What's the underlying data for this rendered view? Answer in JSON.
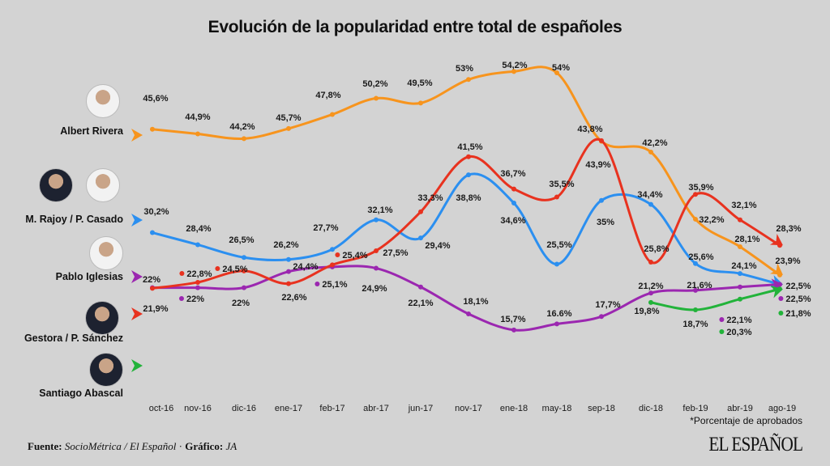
{
  "chart_data": {
    "type": "line",
    "title": "Evolución de la popularidad entre total de españoles",
    "categories": [
      "oct-16",
      "nov-16",
      "dic-16",
      "ene-17",
      "feb-17",
      "abr-17",
      "jun-17",
      "nov-17",
      "ene-18",
      "may-18",
      "sep-18",
      "dic-18",
      "feb-19",
      "abr-19",
      "ago-19"
    ],
    "ylim": [
      12,
      56
    ],
    "grid": false,
    "note": "*Porcentaje de aprobados",
    "series": [
      {
        "name": "Albert Rivera",
        "color": "#f7941d",
        "values": [
          45.6,
          44.9,
          44.2,
          45.7,
          47.8,
          50.2,
          49.5,
          53,
          54.2,
          54,
          43.8,
          42.2,
          32.2,
          28.1,
          23.9
        ],
        "labels": [
          "45,6%",
          "44,9%",
          "44,2%",
          "45,7%",
          "47,8%",
          "50,2%",
          "49,5%",
          "53%",
          "54,2%",
          "54%",
          "43,8%",
          "42,2%",
          "32,2%",
          "28,1%",
          "23,9%"
        ]
      },
      {
        "name": "M. Rajoy / P. Casado",
        "color": "#2b8ff0",
        "values": [
          30.2,
          28.4,
          26.5,
          26.2,
          27.7,
          32.1,
          29.4,
          38.8,
          34.6,
          25.5,
          35,
          34.4,
          25.6,
          24.1,
          22.5
        ],
        "labels": [
          "30,2%",
          "28,4%",
          "26,5%",
          "26,2%",
          "27,7%",
          "32,1%",
          "29,4%",
          "38,8%",
          "34,6%",
          "25,5%",
          "35%",
          "34,4%",
          "25,6%",
          "24,1%",
          "22,5%"
        ]
      },
      {
        "name": "Pablo Iglesias",
        "color": "#9b27b0",
        "values": [
          22,
          22,
          22,
          24.4,
          25.1,
          24.9,
          22.1,
          18.1,
          15.7,
          16.6,
          17.7,
          21.2,
          21.6,
          22.1,
          22.5
        ],
        "labels": [
          "22%",
          "22%",
          "22%",
          "24,4%",
          "25,1%",
          "24,9%",
          "22,1%",
          "18,1%",
          "15,7%",
          "16.6%",
          "17,7%",
          "21,2%",
          "21,6%",
          "22,1%",
          "22,5%"
        ]
      },
      {
        "name": "Gestora / P. Sánchez",
        "color": "#e8321f",
        "values": [
          21.9,
          22.8,
          24.5,
          22.6,
          25.4,
          27.5,
          33.3,
          41.5,
          36.7,
          35.5,
          43.9,
          25.8,
          35.9,
          32.1,
          28.3
        ],
        "labels": [
          "21,9%",
          "22,8%",
          "24,5%",
          "22,6%",
          "25,4%",
          "27,5%",
          "33,3%",
          "41,5%",
          "36,7%",
          "35,5%",
          "43,9%",
          "25,8%",
          "35,9%",
          "32,1%",
          "28,3%"
        ]
      },
      {
        "name": "Santiago Abascal",
        "color": "#22b33a",
        "values": [
          null,
          null,
          null,
          null,
          null,
          null,
          null,
          null,
          null,
          null,
          null,
          19.8,
          18.7,
          20.3,
          21.8
        ],
        "labels": [
          null,
          null,
          null,
          null,
          null,
          null,
          null,
          null,
          null,
          null,
          null,
          "19,8%",
          "18,7%",
          "20,3%",
          "21,8%"
        ]
      }
    ]
  },
  "footer": {
    "source_label": "Fuente:",
    "source_text": "SocioMétrica / El Español",
    "separator": "·",
    "graphic_label": "Gráfico:",
    "graphic_text": "JA",
    "logo": "EL ESPAÑOL"
  }
}
